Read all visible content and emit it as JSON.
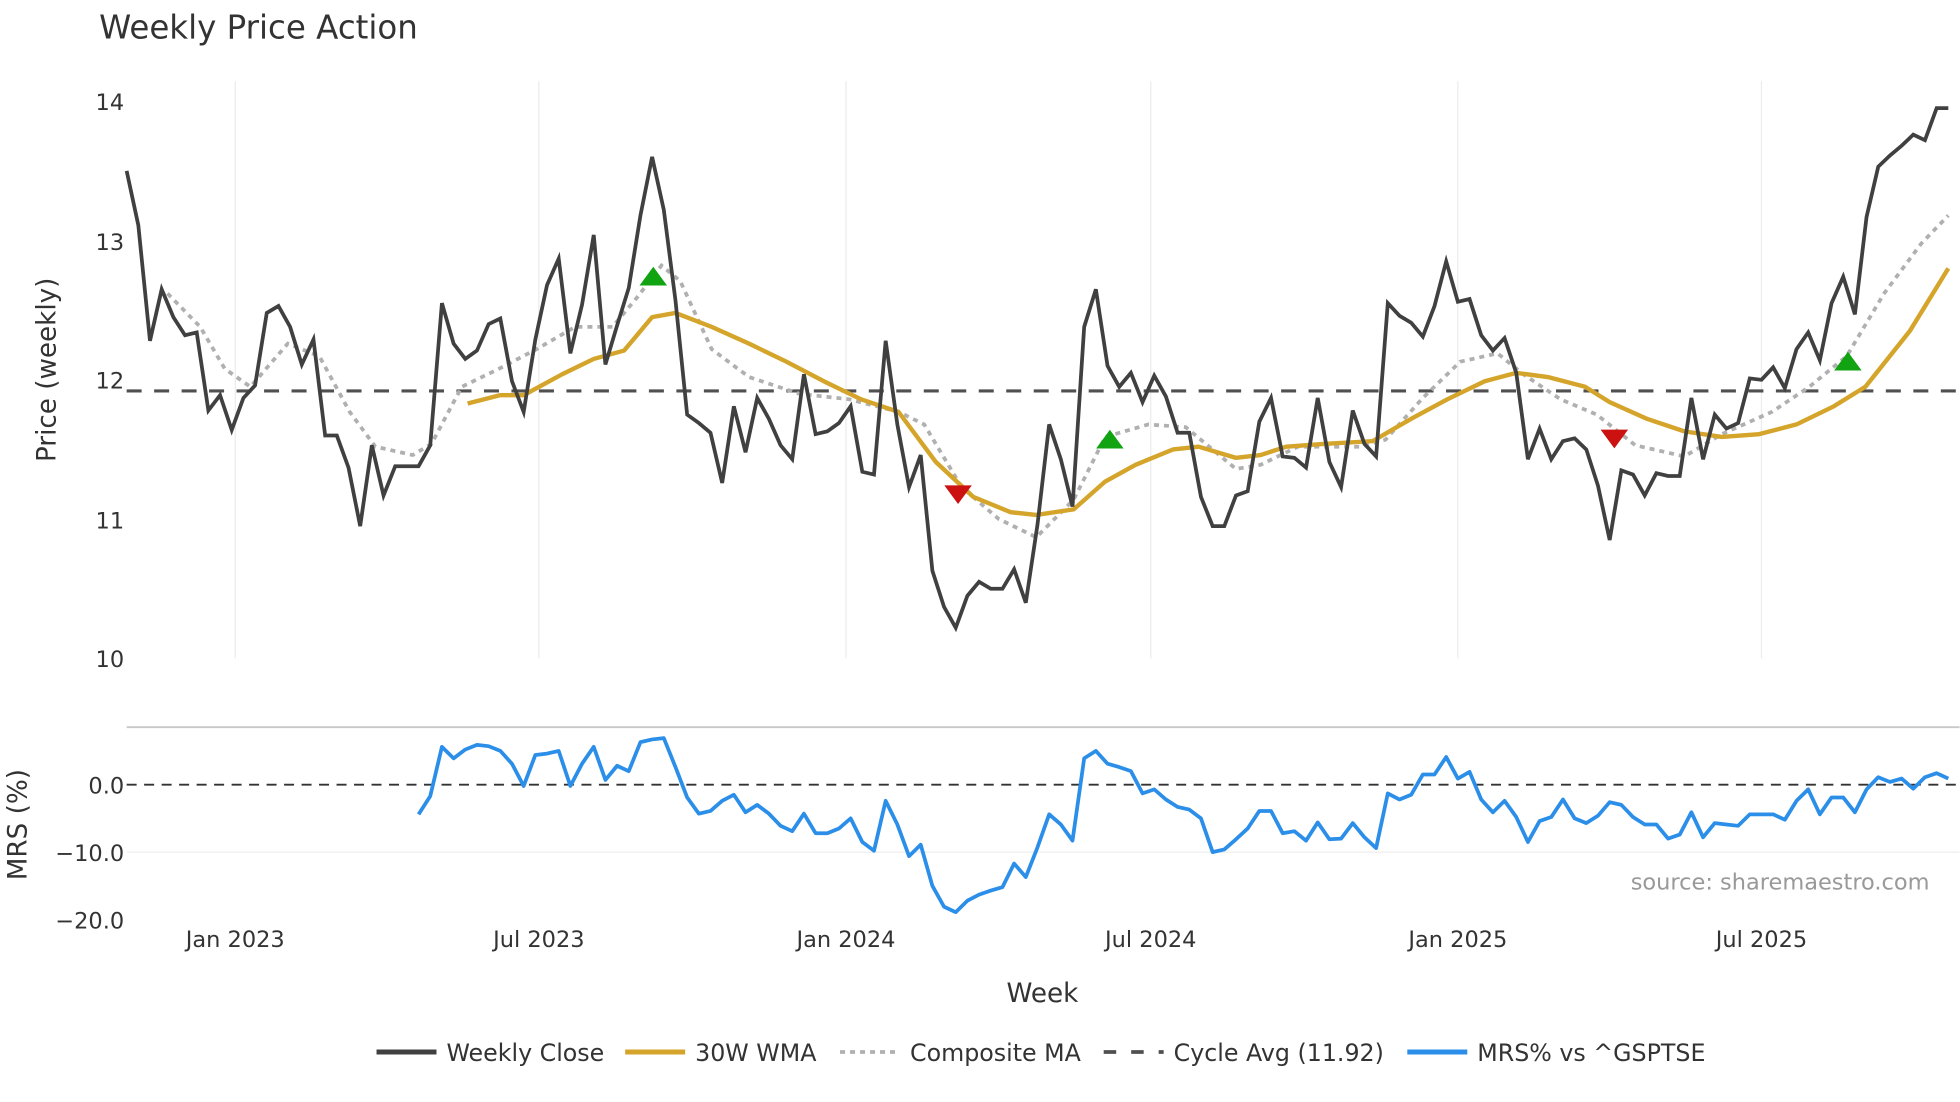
{
  "chart_data": {
    "type": "line",
    "title": "Weekly Price Action",
    "xlabel": "Week",
    "price_panel": {
      "ylabel": "Price (weekly)",
      "ylim": [
        10,
        14
      ],
      "yticks": [
        "10",
        "11",
        "12",
        "13",
        "14"
      ],
      "ytick_values": [
        10,
        11,
        12,
        13,
        14
      ]
    },
    "mrs_panel": {
      "ylabel": "MRS (%)",
      "ylim": [
        -22,
        9
      ],
      "yticks": [
        "−20.0",
        "−10.0",
        "0.0"
      ],
      "ytick_values": [
        -20,
        -10,
        0
      ]
    },
    "xticks": [
      "Jan 2023",
      "Jul 2023",
      "Jan 2024",
      "Jul 2024",
      "Jan 2025",
      "Jul 2025"
    ],
    "xtick_week_index": [
      9.3,
      35.3,
      61.6,
      87.7,
      114.0,
      140.0
    ],
    "weekly_close": [
      13.5,
      13.11,
      12.28,
      12.65,
      12.45,
      12.32,
      12.34,
      11.78,
      11.89,
      11.64,
      11.87,
      11.96,
      12.48,
      12.53,
      12.38,
      12.11,
      12.29,
      11.6,
      11.6,
      11.37,
      10.95,
      11.53,
      11.17,
      11.38,
      11.38,
      11.38,
      11.53,
      12.55,
      12.26,
      12.15,
      12.21,
      12.4,
      12.44,
      11.99,
      11.77,
      12.29,
      12.68,
      12.87,
      12.19,
      12.54,
      13.04,
      12.11,
      12.39,
      12.66,
      13.18,
      13.6,
      13.22,
      12.57,
      11.75,
      11.69,
      11.62,
      11.26,
      11.81,
      11.48,
      11.87,
      11.72,
      11.53,
      11.43,
      12.04,
      11.61,
      11.63,
      11.69,
      11.81,
      11.34,
      11.32,
      12.28,
      11.68,
      11.23,
      11.46,
      10.63,
      10.37,
      10.22,
      10.45,
      10.55,
      10.5,
      10.5,
      10.64,
      10.4,
      10.96,
      11.68,
      11.43,
      11.09,
      12.38,
      12.65,
      12.1,
      11.95,
      12.05,
      11.84,
      12.03,
      11.88,
      11.62,
      11.62,
      11.16,
      10.95,
      10.95,
      11.17,
      11.2,
      11.7,
      11.87,
      11.45,
      11.44,
      11.37,
      11.87,
      11.41,
      11.23,
      11.78,
      11.54,
      11.45,
      12.55,
      12.46,
      12.41,
      12.31,
      12.53,
      12.85,
      12.56,
      12.58,
      12.32,
      12.21,
      12.3,
      12.05,
      11.43,
      11.65,
      11.43,
      11.56,
      11.58,
      11.5,
      11.24,
      10.85,
      11.35,
      11.32,
      11.17,
      11.33,
      11.31,
      11.31,
      11.87,
      11.43,
      11.75,
      11.65,
      11.69,
      12.01,
      12.0,
      12.09,
      11.94,
      12.22,
      12.34,
      12.14,
      12.55,
      12.74,
      12.47,
      13.17,
      13.53,
      13.61,
      13.68,
      13.76,
      13.72,
      13.95,
      13.95
    ],
    "wma_30w": [
      [
        29.2,
        11.83
      ],
      [
        32,
        11.89
      ],
      [
        34,
        11.89
      ],
      [
        37.3,
        12.04
      ],
      [
        40,
        12.15
      ],
      [
        42.6,
        12.21
      ],
      [
        45,
        12.45
      ],
      [
        47,
        12.48
      ],
      [
        50.1,
        12.38
      ],
      [
        53.3,
        12.26
      ],
      [
        56.5,
        12.13
      ],
      [
        59.7,
        11.99
      ],
      [
        62.9,
        11.86
      ],
      [
        66.1,
        11.77
      ],
      [
        69.3,
        11.41
      ],
      [
        72.5,
        11.16
      ],
      [
        75.7,
        11.05
      ],
      [
        77.9,
        11.03
      ],
      [
        81.1,
        11.07
      ],
      [
        83.8,
        11.27
      ],
      [
        86.4,
        11.39
      ],
      [
        89.6,
        11.5
      ],
      [
        91.8,
        11.52
      ],
      [
        95,
        11.44
      ],
      [
        97.1,
        11.46
      ],
      [
        99.3,
        11.52
      ],
      [
        102.5,
        11.54
      ],
      [
        106.7,
        11.56
      ],
      [
        110,
        11.72
      ],
      [
        113.1,
        11.86
      ],
      [
        116.3,
        11.99
      ],
      [
        119,
        12.05
      ],
      [
        121.7,
        12.02
      ],
      [
        124.9,
        11.95
      ],
      [
        127,
        11.84
      ],
      [
        130.2,
        11.72
      ],
      [
        133.4,
        11.63
      ],
      [
        136.6,
        11.59
      ],
      [
        139.8,
        11.61
      ],
      [
        143,
        11.68
      ],
      [
        146.2,
        11.81
      ],
      [
        148.9,
        11.95
      ],
      [
        152.7,
        12.35
      ],
      [
        156,
        12.8
      ]
    ],
    "composite_ma": [
      [
        3.5,
        12.62
      ],
      [
        6.3,
        12.38
      ],
      [
        8.4,
        12.08
      ],
      [
        10.6,
        11.95
      ],
      [
        13.8,
        12.26
      ],
      [
        16.5,
        12.17
      ],
      [
        19.1,
        11.77
      ],
      [
        21.3,
        11.52
      ],
      [
        24.5,
        11.46
      ],
      [
        26.1,
        11.54
      ],
      [
        28.7,
        11.95
      ],
      [
        31.9,
        12.08
      ],
      [
        35.1,
        12.22
      ],
      [
        38.4,
        12.38
      ],
      [
        41.6,
        12.38
      ],
      [
        43.7,
        12.59
      ],
      [
        45.8,
        12.82
      ],
      [
        47.4,
        12.71
      ],
      [
        50.1,
        12.22
      ],
      [
        53.3,
        12.02
      ],
      [
        57.6,
        11.9
      ],
      [
        61.9,
        11.86
      ],
      [
        66.1,
        11.77
      ],
      [
        68.3,
        11.68
      ],
      [
        71.5,
        11.23
      ],
      [
        74.7,
        11.0
      ],
      [
        77.9,
        10.87
      ],
      [
        81.1,
        11.14
      ],
      [
        83.8,
        11.59
      ],
      [
        87.5,
        11.68
      ],
      [
        90.7,
        11.66
      ],
      [
        95,
        11.36
      ],
      [
        97.1,
        11.39
      ],
      [
        100.3,
        11.52
      ],
      [
        105.6,
        11.52
      ],
      [
        107.8,
        11.57
      ],
      [
        111,
        11.87
      ],
      [
        114.2,
        12.13
      ],
      [
        117.4,
        12.19
      ],
      [
        119.6,
        12.04
      ],
      [
        122.8,
        11.86
      ],
      [
        125.9,
        11.75
      ],
      [
        129.2,
        11.53
      ],
      [
        133.4,
        11.45
      ],
      [
        136.6,
        11.61
      ],
      [
        140.9,
        11.77
      ],
      [
        144.1,
        11.95
      ],
      [
        147.3,
        12.17
      ],
      [
        150.5,
        12.62
      ],
      [
        153.7,
        12.98
      ],
      [
        156,
        13.18
      ]
    ],
    "cycle_avg": 11.92,
    "buy_signals": [
      [
        45.1,
        12.74
      ],
      [
        84.2,
        11.57
      ],
      [
        147.4,
        12.13
      ]
    ],
    "sell_signals": [
      [
        71.2,
        11.18
      ],
      [
        127.4,
        11.58
      ]
    ],
    "mrs_start_week_index": 25,
    "mrs_pct": [
      -4.4,
      -1.7,
      5.6,
      3.9,
      5.2,
      5.9,
      5.7,
      5.0,
      3.1,
      -0.2,
      4.4,
      4.6,
      5.0,
      -0.2,
      3.1,
      5.6,
      0.7,
      2.8,
      2.0,
      6.3,
      6.7,
      6.9,
      2.6,
      -1.9,
      -4.3,
      -3.9,
      -2.4,
      -1.5,
      -4.1,
      -3.0,
      -4.3,
      -6.1,
      -6.9,
      -4.3,
      -7.2,
      -7.2,
      -6.5,
      -5.0,
      -8.5,
      -9.8,
      -2.4,
      -5.9,
      -10.6,
      -8.9,
      -15.0,
      -18.1,
      -18.9,
      -17.2,
      -16.3,
      -15.7,
      -15.2,
      -11.7,
      -13.7,
      -9.3,
      -4.4,
      -5.9,
      -8.3,
      3.9,
      5.0,
      3.1,
      2.6,
      2.0,
      -1.3,
      -0.7,
      -2.2,
      -3.3,
      -3.7,
      -5.0,
      -10.0,
      -9.6,
      -8.1,
      -6.5,
      -3.9,
      -3.9,
      -7.2,
      -6.9,
      -8.3,
      -5.6,
      -8.1,
      -8.0,
      -5.7,
      -7.8,
      -9.4,
      -1.3,
      -2.2,
      -1.5,
      1.5,
      1.5,
      4.1,
      0.9,
      1.9,
      -2.2,
      -4.1,
      -2.4,
      -4.8,
      -8.5,
      -5.4,
      -4.8,
      -2.2,
      -5.0,
      -5.7,
      -4.6,
      -2.6,
      -3.0,
      -4.8,
      -5.9,
      -5.9,
      -8.0,
      -7.4,
      -4.1,
      -7.8,
      -5.7,
      -5.9,
      -6.1,
      -4.4,
      -4.4,
      -4.4,
      -5.2,
      -2.4,
      -0.7,
      -4.4,
      -1.9,
      -1.9,
      -4.1,
      -0.7,
      1.1,
      0.4,
      0.9,
      -0.6,
      1.1,
      1.7,
      0.9
    ],
    "legend": {
      "placement": "bottom-center",
      "items": [
        "Weekly Close",
        "30W WMA",
        "Composite MA",
        "Cycle Avg (11.92)",
        "MRS% vs ^GSPTSE"
      ]
    },
    "colors": {
      "close": "#404040",
      "wma": "#d4a52a",
      "composite": "#b0b0b0",
      "cycle": "#505050",
      "mrs": "#2b8ee8",
      "buy": "#11a311",
      "sell": "#cc1111"
    },
    "source": "source: sharemaestro.com"
  }
}
